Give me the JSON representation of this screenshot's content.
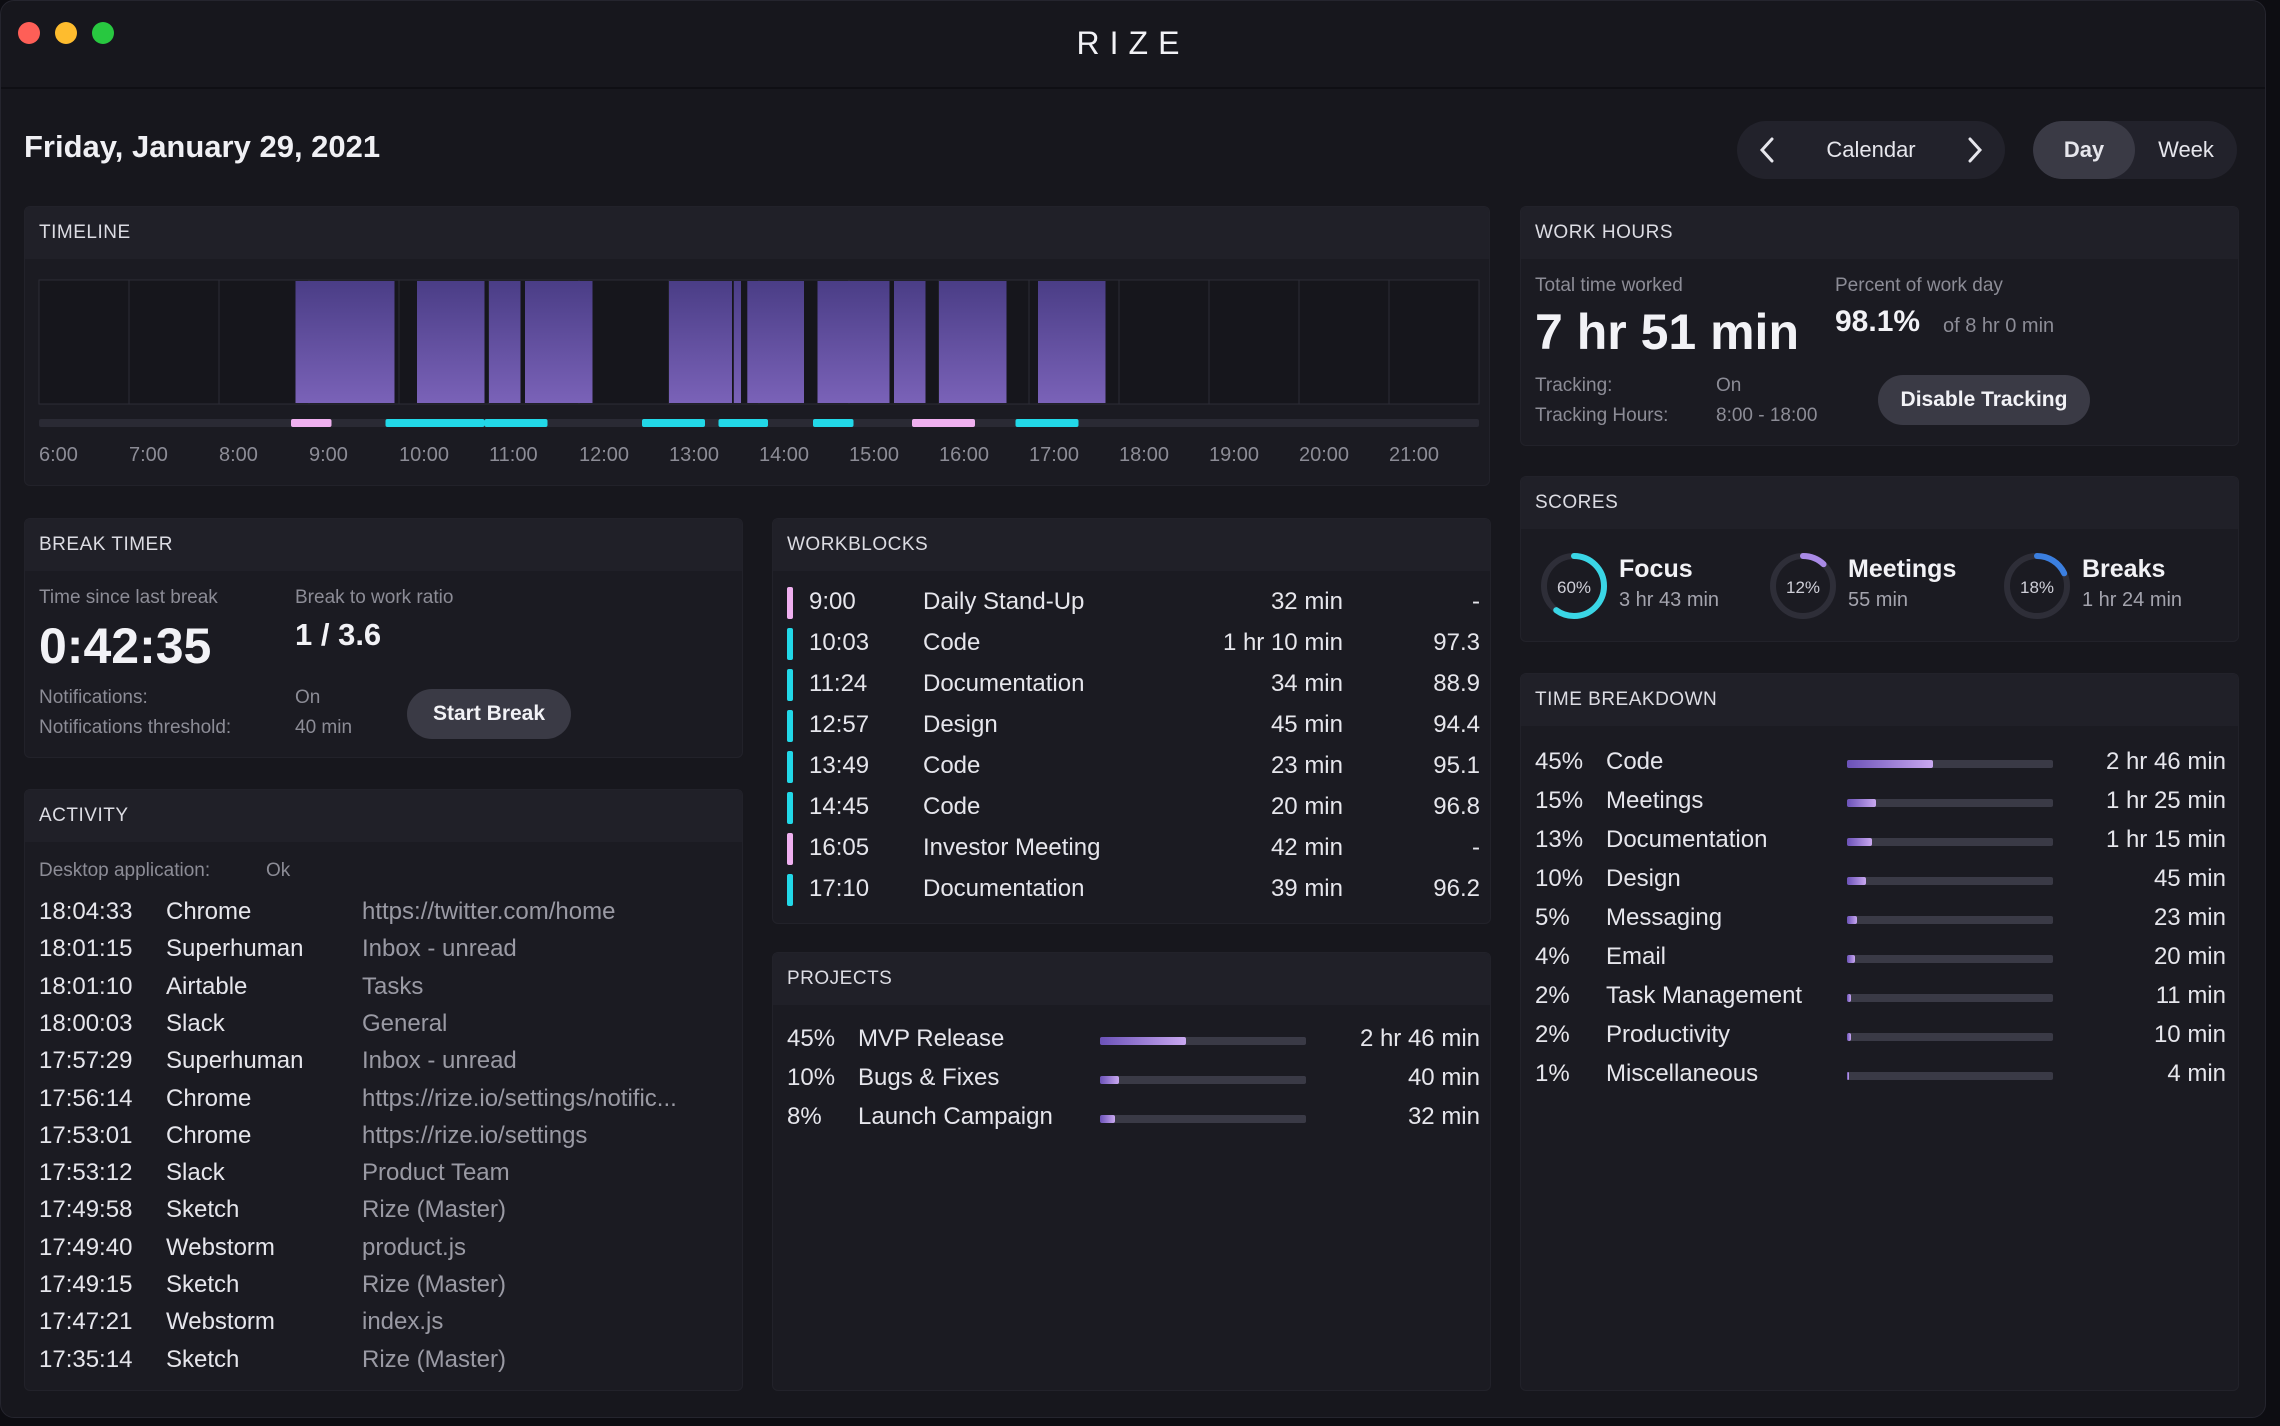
{
  "app": {
    "title": "RIZE"
  },
  "header": {
    "date": "Friday, January 29, 2021",
    "nav_label": "Calendar",
    "prev_icon": "chevron-left-icon",
    "next_icon": "chevron-right-icon",
    "view_tabs": [
      {
        "label": "Day",
        "active": true
      },
      {
        "label": "Week",
        "active": false
      }
    ]
  },
  "timeline": {
    "title": "TIMELINE",
    "hours": [
      "6:00",
      "7:00",
      "8:00",
      "9:00",
      "10:00",
      "11:00",
      "12:00",
      "13:00",
      "14:00",
      "15:00",
      "16:00",
      "17:00",
      "18:00",
      "19:00",
      "20:00",
      "21:00"
    ],
    "activity_blocks": [
      [
        8.85,
        9.0
      ],
      [
        9.0,
        9.95
      ],
      [
        10.2,
        10.95
      ],
      [
        11.0,
        11.35
      ],
      [
        11.4,
        12.15
      ],
      [
        13.0,
        13.7
      ],
      [
        13.72,
        13.8
      ],
      [
        13.87,
        14.5
      ],
      [
        14.65,
        15.45
      ],
      [
        15.5,
        15.85
      ],
      [
        16.0,
        16.75
      ],
      [
        17.1,
        17.85
      ]
    ],
    "workblock_markers": [
      {
        "start": 8.8,
        "end": 9.25,
        "color": "#f0b0f0"
      },
      {
        "start": 9.85,
        "end": 10.95,
        "color": "#22d8e8"
      },
      {
        "start": 10.95,
        "end": 11.65,
        "color": "#22d8e8"
      },
      {
        "start": 12.7,
        "end": 13.4,
        "color": "#22d8e8"
      },
      {
        "start": 13.55,
        "end": 14.1,
        "color": "#22d8e8"
      },
      {
        "start": 14.6,
        "end": 15.05,
        "color": "#22d8e8"
      },
      {
        "start": 15.7,
        "end": 16.4,
        "color": "#f0b0f0"
      },
      {
        "start": 16.85,
        "end": 17.55,
        "color": "#22d8e8"
      }
    ]
  },
  "work_hours": {
    "title": "WORK HOURS",
    "total_label": "Total time worked",
    "total_value": "7 hr 51 min",
    "percent_label": "Percent of work day",
    "percent_value": "98.1%",
    "percent_of": "of 8 hr 0 min",
    "tracking_label": "Tracking:",
    "tracking_value": "On",
    "tracking_hours_label": "Tracking Hours:",
    "tracking_hours_value": "8:00 - 18:00",
    "disable_button": "Disable Tracking"
  },
  "scores": {
    "title": "SCORES",
    "items": [
      {
        "name": "Focus",
        "percent_label": "60%",
        "value": 60,
        "time": "3 hr 43 min",
        "color": "#3ad6e6"
      },
      {
        "name": "Meetings",
        "percent_label": "12%",
        "value": 12,
        "time": "55 min",
        "color": "#a98ae6"
      },
      {
        "name": "Breaks",
        "percent_label": "18%",
        "value": 18,
        "time": "1 hr 24 min",
        "color": "#3b7fe0"
      }
    ]
  },
  "break_timer": {
    "title": "BREAK TIMER",
    "since_label": "Time since last break",
    "since_value": "0:42:35",
    "ratio_label": "Break to work ratio",
    "ratio_value": "1 / 3.6",
    "notifications_label": "Notifications:",
    "notifications_value": "On",
    "threshold_label": "Notifications threshold:",
    "threshold_value": "40 min",
    "start_button": "Start Break"
  },
  "activity": {
    "title": "ACTIVITY",
    "desktop_label": "Desktop application:",
    "desktop_value": "Ok",
    "rows": [
      {
        "time": "18:04:33",
        "app": "Chrome",
        "detail": "https://twitter.com/home"
      },
      {
        "time": "18:01:15",
        "app": "Superhuman",
        "detail": "Inbox - unread"
      },
      {
        "time": "18:01:10",
        "app": "Airtable",
        "detail": "Tasks"
      },
      {
        "time": "18:00:03",
        "app": "Slack",
        "detail": "General"
      },
      {
        "time": "17:57:29",
        "app": "Superhuman",
        "detail": "Inbox - unread"
      },
      {
        "time": "17:56:14",
        "app": "Chrome",
        "detail": "https://rize.io/settings/notific..."
      },
      {
        "time": "17:53:01",
        "app": "Chrome",
        "detail": "https://rize.io/settings"
      },
      {
        "time": "17:53:12",
        "app": "Slack",
        "detail": "Product Team"
      },
      {
        "time": "17:49:58",
        "app": "Sketch",
        "detail": "Rize (Master)"
      },
      {
        "time": "17:49:40",
        "app": "Webstorm",
        "detail": "product.js"
      },
      {
        "time": "17:49:15",
        "app": "Sketch",
        "detail": "Rize (Master)"
      },
      {
        "time": "17:47:21",
        "app": "Webstorm",
        "detail": "index.js"
      },
      {
        "time": "17:35:14",
        "app": "Sketch",
        "detail": "Rize (Master)"
      }
    ]
  },
  "workblocks": {
    "title": "WORKBLOCKS",
    "rows": [
      {
        "time": "9:00",
        "name": "Daily Stand-Up",
        "duration": "32 min",
        "score": "-",
        "color": "#f0b0f0"
      },
      {
        "time": "10:03",
        "name": "Code",
        "duration": "1 hr 10 min",
        "score": "97.3",
        "color": "#22d8e8"
      },
      {
        "time": "11:24",
        "name": "Documentation",
        "duration": "34 min",
        "score": "88.9",
        "color": "#22d8e8"
      },
      {
        "time": "12:57",
        "name": "Design",
        "duration": "45 min",
        "score": "94.4",
        "color": "#22d8e8"
      },
      {
        "time": "13:49",
        "name": "Code",
        "duration": "23 min",
        "score": "95.1",
        "color": "#22d8e8"
      },
      {
        "time": "14:45",
        "name": "Code",
        "duration": "20 min",
        "score": "96.8",
        "color": "#22d8e8"
      },
      {
        "time": "16:05",
        "name": "Investor Meeting",
        "duration": "42 min",
        "score": "-",
        "color": "#f0b0f0"
      },
      {
        "time": "17:10",
        "name": "Documentation",
        "duration": "39 min",
        "score": "96.2",
        "color": "#22d8e8"
      }
    ]
  },
  "projects": {
    "title": "PROJECTS",
    "rows": [
      {
        "pct": "45%",
        "value": 45,
        "name": "MVP Release",
        "time": "2 hr 46 min"
      },
      {
        "pct": "10%",
        "value": 10,
        "name": "Bugs & Fixes",
        "time": "40 min"
      },
      {
        "pct": "8%",
        "value": 8,
        "name": "Launch Campaign",
        "time": "32 min"
      }
    ]
  },
  "time_breakdown": {
    "title": "TIME BREAKDOWN",
    "rows": [
      {
        "pct": "45%",
        "value": 45,
        "name": "Code",
        "time": "2 hr 46 min"
      },
      {
        "pct": "15%",
        "value": 15,
        "name": "Meetings",
        "time": "1 hr 25 min"
      },
      {
        "pct": "13%",
        "value": 13,
        "name": "Documentation",
        "time": "1 hr 15 min"
      },
      {
        "pct": "10%",
        "value": 10,
        "name": "Design",
        "time": "45 min"
      },
      {
        "pct": "5%",
        "value": 5,
        "name": "Messaging",
        "time": "23 min"
      },
      {
        "pct": "4%",
        "value": 4,
        "name": "Email",
        "time": "20 min"
      },
      {
        "pct": "2%",
        "value": 2,
        "name": "Task Management",
        "time": "11 min"
      },
      {
        "pct": "2%",
        "value": 2,
        "name": "Productivity",
        "time": "10 min"
      },
      {
        "pct": "1%",
        "value": 1,
        "name": "Miscellaneous",
        "time": "4 min"
      }
    ]
  }
}
